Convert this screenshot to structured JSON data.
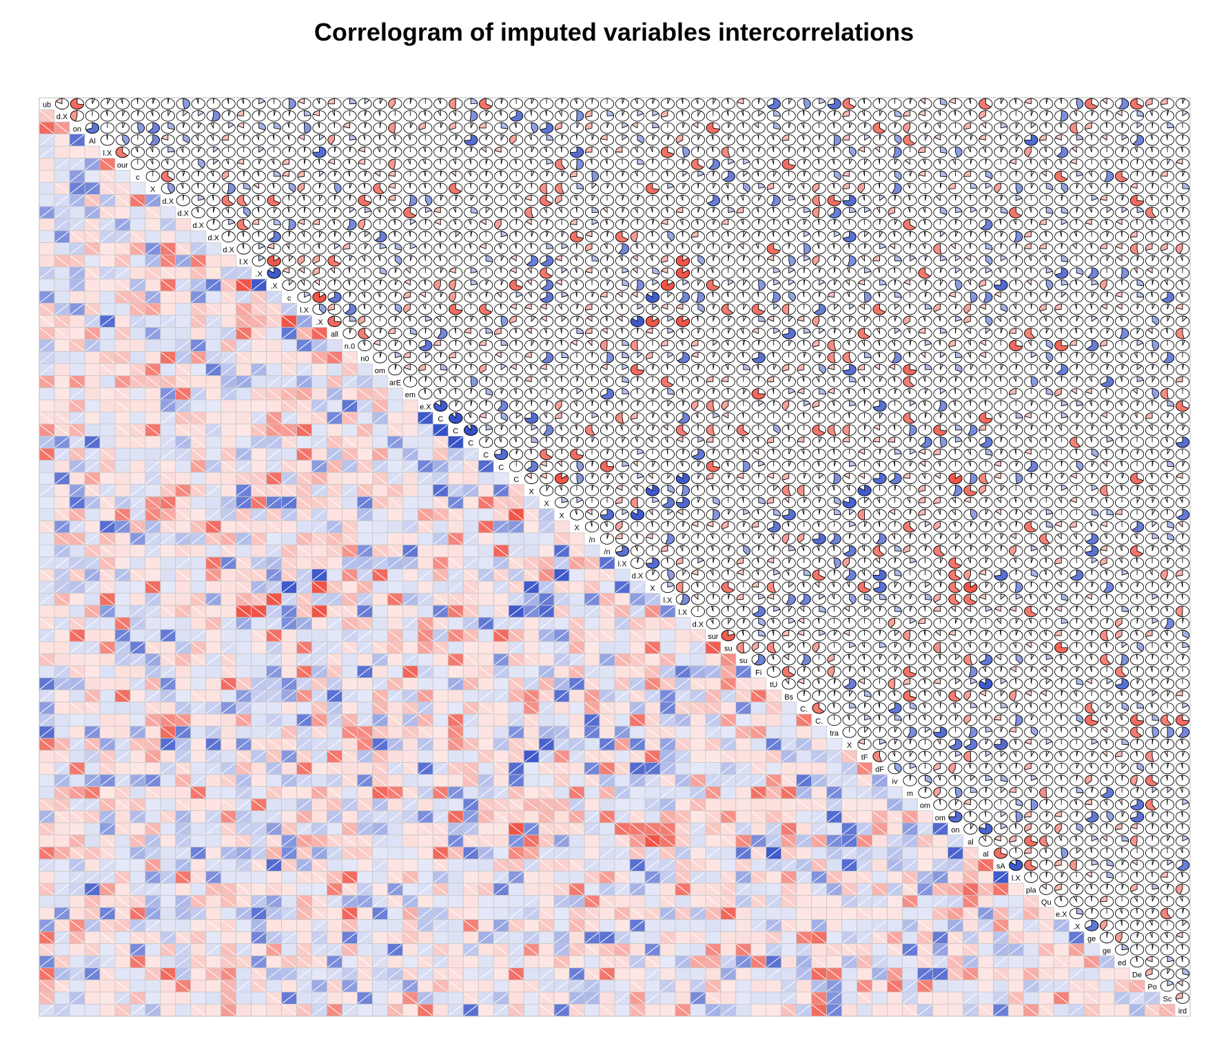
{
  "chart_data": {
    "type": "heatmap",
    "title": "Correlogram of imputed variables intercorrelations",
    "variable_count": 76,
    "lower_panel": "shade",
    "upper_panel": "pie",
    "text_panel": "variable names on diagonal",
    "color_scale": {
      "negative": "#ef3b2c",
      "zero": "#ffffff",
      "positive": "#2241c4"
    },
    "grid_color": "#c8c8c8",
    "diagonal_labels": [
      "ub",
      "d.X",
      "on",
      "Al",
      "l.X",
      "our",
      "c",
      "X",
      "d.X",
      "d.X",
      "d.X",
      "d.X",
      "d.X",
      "l.X",
      ".X",
      ".X",
      "c",
      "l.X",
      ".X",
      "all",
      "n.0",
      "n0",
      "om",
      "arE",
      "em",
      "e.X",
      "C",
      "C",
      "C",
      "C",
      "C",
      "C",
      "X",
      "X",
      "X",
      "X",
      "/n",
      "/n",
      "l.X",
      "d.X",
      "X",
      "l.X",
      "l.X",
      "d.X",
      "sur",
      "su",
      "su",
      "Fi",
      "tU",
      "Bs",
      "C.",
      "C.",
      "tra",
      "X",
      "tF",
      "dF",
      "iv",
      "m",
      "om",
      "om",
      "on",
      "al",
      "al",
      "sA",
      "l.X",
      "pla",
      "Qu",
      "e.X",
      ".X",
      "ge",
      "ge",
      "ed",
      "De",
      "Po",
      "Sc",
      "ird"
    ],
    "notable_correlations": [
      {
        "row": 2,
        "col": 3,
        "r": 0.7
      },
      {
        "row": 25,
        "col": 26,
        "r": 0.85
      },
      {
        "row": 26,
        "col": 27,
        "r": 0.9
      },
      {
        "row": 27,
        "col": 28,
        "r": 0.9
      },
      {
        "row": 44,
        "col": 45,
        "r": -0.8
      },
      {
        "row": 46,
        "col": 47,
        "r": 0.6
      },
      {
        "row": 59,
        "col": 60,
        "r": 0.75
      },
      {
        "row": 62,
        "col": 63,
        "r": -0.7
      },
      {
        "row": 63,
        "col": 64,
        "r": 0.85
      }
    ]
  }
}
